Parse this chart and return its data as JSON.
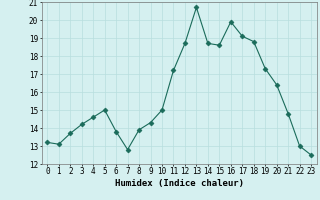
{
  "x": [
    0,
    1,
    2,
    3,
    4,
    5,
    6,
    7,
    8,
    9,
    10,
    11,
    12,
    13,
    14,
    15,
    16,
    17,
    18,
    19,
    20,
    21,
    22,
    23
  ],
  "y": [
    13.2,
    13.1,
    13.7,
    14.2,
    14.6,
    15.0,
    13.8,
    12.8,
    13.9,
    14.3,
    15.0,
    17.2,
    18.7,
    20.7,
    18.7,
    18.6,
    19.9,
    19.1,
    18.8,
    17.3,
    16.4,
    14.8,
    13.0,
    12.5
  ],
  "xlabel": "Humidex (Indice chaleur)",
  "xlim": [
    -0.5,
    23.5
  ],
  "ylim": [
    12,
    21
  ],
  "yticks": [
    12,
    13,
    14,
    15,
    16,
    17,
    18,
    19,
    20,
    21
  ],
  "xticks": [
    0,
    1,
    2,
    3,
    4,
    5,
    6,
    7,
    8,
    9,
    10,
    11,
    12,
    13,
    14,
    15,
    16,
    17,
    18,
    19,
    20,
    21,
    22,
    23
  ],
  "line_color": "#1a6b5a",
  "marker": "D",
  "marker_size": 2.5,
  "bg_color": "#d5f0f0",
  "grid_major_color": "#b8dede",
  "tick_fontsize": 5.5,
  "xlabel_fontsize": 6.5
}
